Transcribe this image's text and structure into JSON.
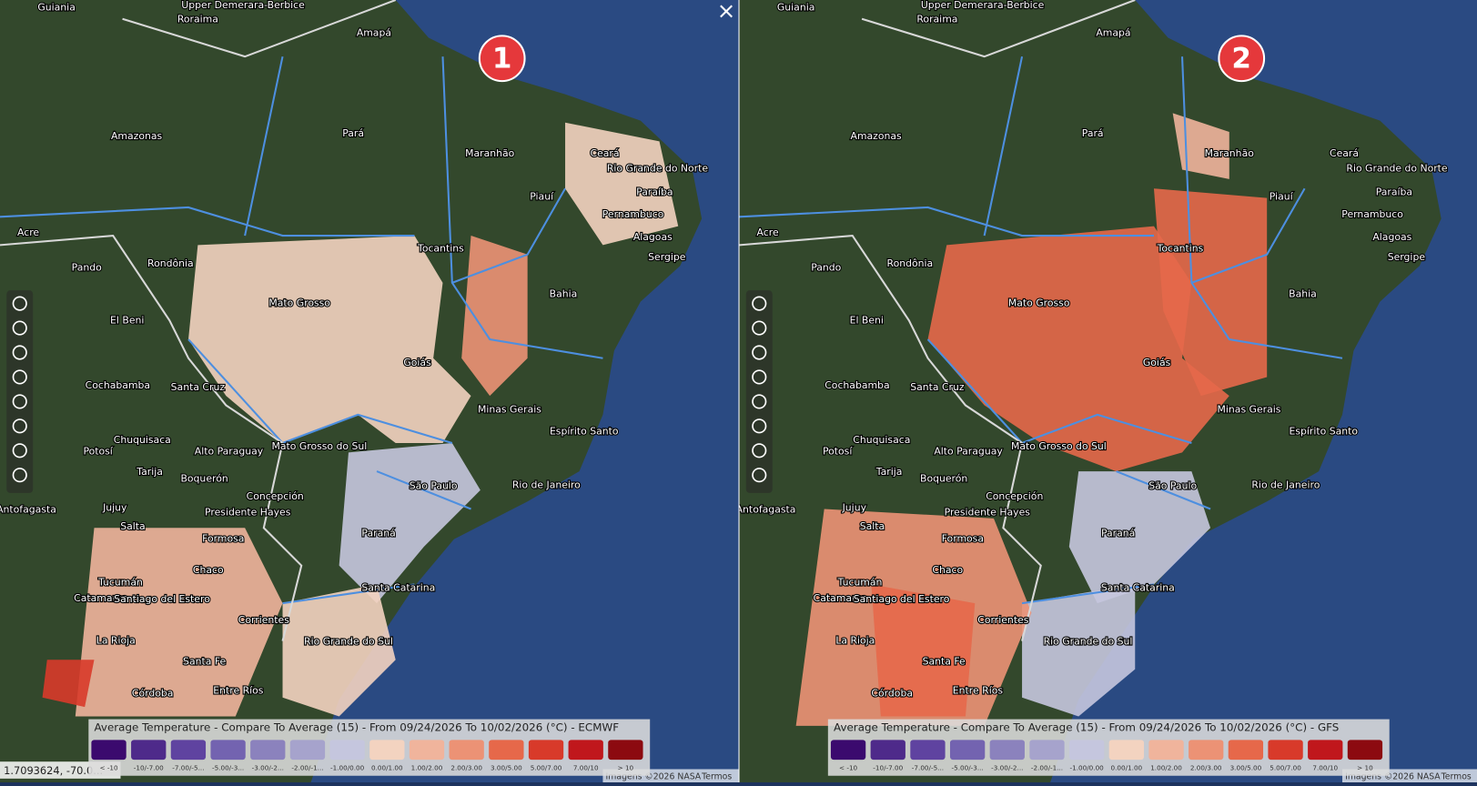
{
  "panels": [
    {
      "badge": "1",
      "legend_title": "Average Temperature - Compare To Average (15) - From 09/24/2026 To 10/02/2026 (°C) - ECMWF"
    },
    {
      "badge": "2",
      "legend_title": "Average Temperature - Compare To Average (15) - From 09/24/2026 To 10/02/2026 (°C) - GFS"
    }
  ],
  "legend": {
    "items": [
      {
        "color": "#3b0a6e",
        "label": "< -10"
      },
      {
        "color": "#4e2a8a",
        "label": "-10/-7.00"
      },
      {
        "color": "#5f43a0",
        "label": "-7.00/-5..."
      },
      {
        "color": "#7363b0",
        "label": "-5.00/-3..."
      },
      {
        "color": "#8b82bd",
        "label": "-3.00/-2..."
      },
      {
        "color": "#a6a3cc",
        "label": "-2.00/-1..."
      },
      {
        "color": "#c5c6de",
        "label": "-1.00/0.00"
      },
      {
        "color": "#f3d3c0",
        "label": "0.00/1.00"
      },
      {
        "color": "#f0b49c",
        "label": "1.00/2.00"
      },
      {
        "color": "#ec9275",
        "label": "2.00/3.00"
      },
      {
        "color": "#e6684a",
        "label": "3.00/5.00"
      },
      {
        "color": "#d83a2a",
        "label": "5.00/7.00"
      },
      {
        "color": "#c0171c",
        "label": "7.00/10"
      },
      {
        "color": "#8c0a10",
        "label": "> 10"
      }
    ]
  },
  "places": [
    "Guiania",
    "Upper Demerara-Berbice",
    "Roraima",
    "Amapá",
    "Amazonas",
    "Pará",
    "Maranhão",
    "Ceará",
    "Rio Grande do Norte",
    "Piauí",
    "Paraíba",
    "Pernambuco",
    "Tocantins",
    "Alagoas",
    "Sergipe",
    "Rondônia",
    "Pando",
    "Acre",
    "Mato Grosso",
    "Bahia",
    "El Beni",
    "Goiás",
    "Cochabamba",
    "Santa Cruz",
    "Minas Gerais",
    "Chuquisaca",
    "Alto Paraguay",
    "Mato Grosso do Sul",
    "Espírito Santo",
    "Potosí",
    "Tarija",
    "Boquerón",
    "São Paulo",
    "Rio de Janeiro",
    "Concepción",
    "Jujuy",
    "Antofagasta",
    "Presidente Hayes",
    "Salta",
    "Paraná",
    "Formosa",
    "Chaco",
    "Tucumán",
    "Catamarca",
    "Santiago del Estero",
    "Santa Catarina",
    "Corrientes",
    "La Rioja",
    "Rio Grande do Sul",
    "Santa Fe",
    "Córdoba",
    "Entre Ríos"
  ],
  "coordinates": "1.7093624, -70.0...",
  "attribution": "Imagens ©2026 NASA",
  "terms": "Termos"
}
